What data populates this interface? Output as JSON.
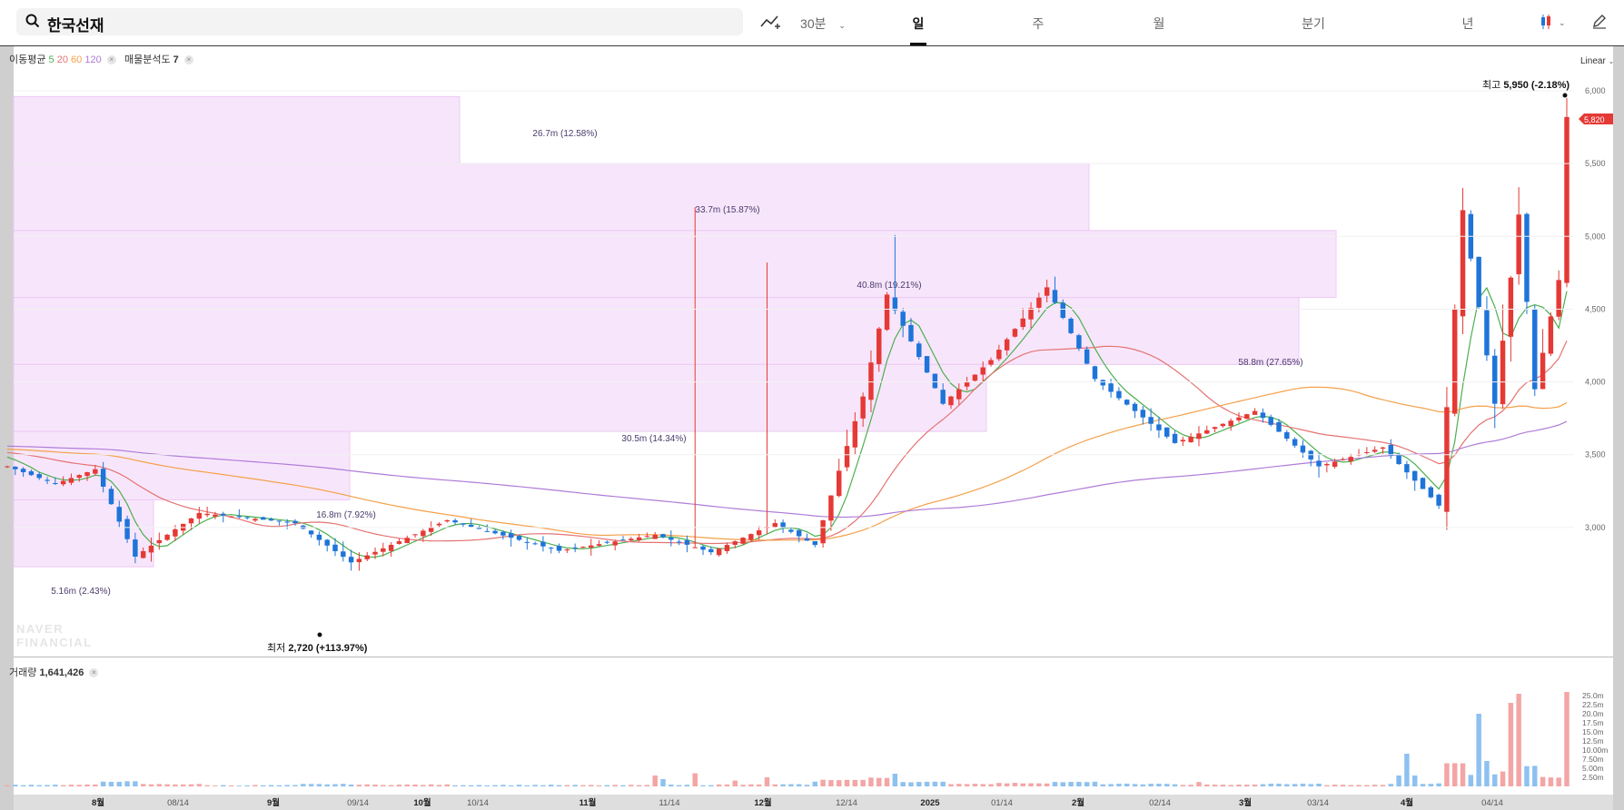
{
  "search": {
    "query": "한국선재"
  },
  "toolbar": {
    "interval": "30분",
    "tabs": [
      "일",
      "주",
      "월",
      "분기",
      "년"
    ],
    "active_tab": "일"
  },
  "indicators": {
    "ma_label": "이동평균",
    "ma_periods": [
      "5",
      "20",
      "60",
      "120"
    ],
    "ma_colors": [
      "#4caf50",
      "#e57373",
      "#f5a04a",
      "#b07cd8"
    ],
    "volume_profile_label": "매물분석도",
    "volume_profile_value": "7"
  },
  "scale_label": "Linear",
  "volume_label": "거래량",
  "volume_value": "1,641,426",
  "watermark": [
    "NAVER",
    "FINANCIAL"
  ],
  "chart_data": {
    "type": "candlestick",
    "price_axis": {
      "ticks": [
        "6,000",
        "5,500",
        "5,000",
        "4,500",
        "4,000",
        "3,500",
        "3,000"
      ],
      "range": [
        2550,
        6250
      ]
    },
    "volume_axis": {
      "ticks": [
        "25.0m",
        "22.5m",
        "20.0m",
        "17.5m",
        "15.0m",
        "12.5m",
        "10.00m",
        "7.50m",
        "5.00m",
        "2.50m"
      ],
      "range": [
        0,
        27000000
      ]
    },
    "x_axis_ticks": [
      "8월",
      "08/14",
      "9월",
      "09/14",
      "10월",
      "10/14",
      "11월",
      "11/14",
      "12월",
      "12/14",
      "2025",
      "01/14",
      "2월",
      "02/14",
      "3월",
      "03/14",
      "4월",
      "04/14"
    ],
    "current_price": "5,820",
    "high_annotation": {
      "label": "최고",
      "value": "5,950 (-2.18%)"
    },
    "low_annotation": {
      "label": "최저",
      "value": "2,720 (+113.97%)"
    },
    "volume_profile": [
      {
        "label": "26.7m (12.58%)",
        "low": 5500,
        "high": 5960
      },
      {
        "label": "33.7m (15.87%)",
        "low": 5040,
        "high": 5500
      },
      {
        "label": "40.8m (19.21%)",
        "low": 4580,
        "high": 5040
      },
      {
        "label": "58.8m (27.65%)",
        "low": 4120,
        "high": 4580
      },
      {
        "label": "30.5m (14.34%)",
        "low": 3660,
        "high": 4120
      },
      {
        "label": "16.8m (7.92%)",
        "low": 3190,
        "high": 3660
      },
      {
        "label": "5.16m (2.43%)",
        "low": 2730,
        "high": 3190
      }
    ]
  }
}
